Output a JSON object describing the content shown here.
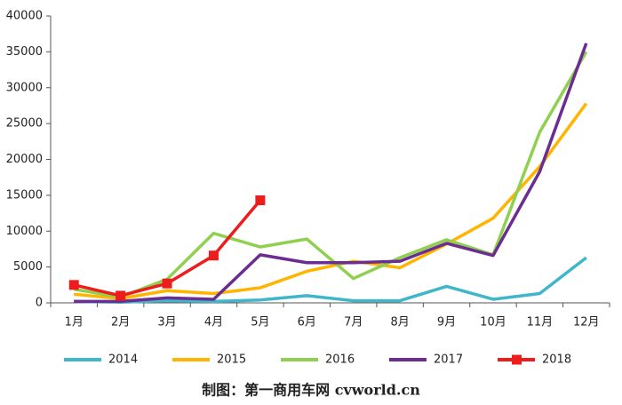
{
  "chart_data": {
    "type": "line",
    "categories": [
      "1月",
      "2月",
      "3月",
      "4月",
      "5月",
      "6月",
      "7月",
      "8月",
      "9月",
      "10月",
      "11月",
      "12月"
    ],
    "series": [
      {
        "name": "2014",
        "color": "#3fb6c9",
        "values": [
          200,
          100,
          300,
          200,
          400,
          1000,
          300,
          300,
          2300,
          500,
          1300,
          6300
        ]
      },
      {
        "name": "2015",
        "color": "#ffb400",
        "values": [
          1200,
          600,
          1700,
          1300,
          2100,
          4400,
          5800,
          4900,
          8200,
          11800,
          19000,
          27800
        ]
      },
      {
        "name": "2016",
        "color": "#8fd04f",
        "values": [
          1900,
          800,
          3300,
          9700,
          7800,
          8900,
          3400,
          6300,
          8800,
          6700,
          23800,
          35000
        ]
      },
      {
        "name": "2017",
        "color": "#6b2d91",
        "values": [
          200,
          200,
          700,
          500,
          6700,
          5600,
          5600,
          5800,
          8300,
          6600,
          18300,
          36200
        ]
      },
      {
        "name": "2018",
        "color": "#ee1d1d",
        "values": [
          2500,
          1000,
          2700,
          6600,
          14300,
          null,
          null,
          null,
          null,
          null,
          null,
          null
        ],
        "markers": true
      }
    ],
    "ylim": [
      0,
      40000
    ],
    "yticks": [
      0,
      5000,
      10000,
      15000,
      20000,
      25000,
      30000,
      35000,
      40000
    ],
    "legend": "bottom",
    "caption": "制图：第一商用车网 cvworld.cn"
  }
}
